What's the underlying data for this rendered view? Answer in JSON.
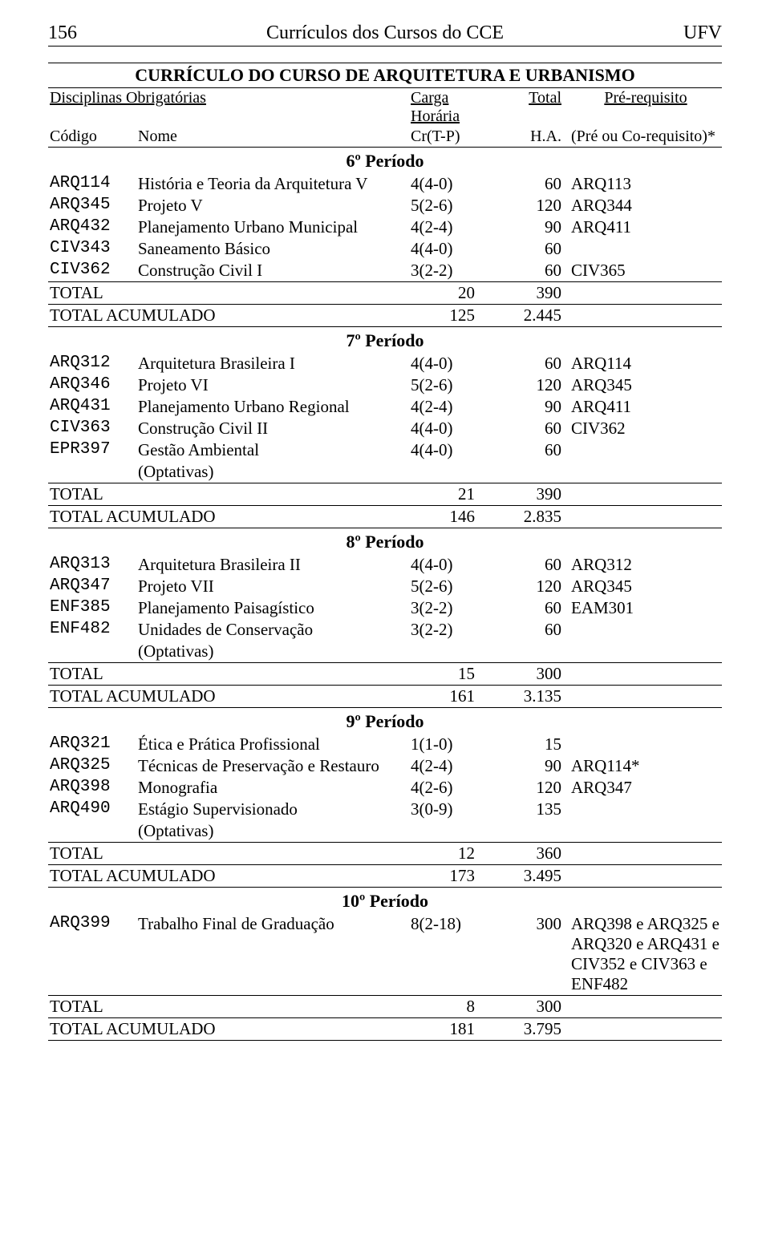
{
  "header": {
    "page_number": "156",
    "center": "Currículos dos Cursos do CCE",
    "right": "UFV"
  },
  "title": "CURRÍCULO DO CURSO DE ARQUITETURA E URBANISMO",
  "col_headers": {
    "disc": "Disciplinas Obrigatórias",
    "carga": "Carga Horária",
    "total": "Total",
    "prereq": "Pré-requisito",
    "codigo": "Código",
    "nome": "Nome",
    "crtp": "Cr(T-P)",
    "ha": "H.A.",
    "pre_co": "(Pré ou Co-requisito)*"
  },
  "periods": [
    {
      "label": "6º Período",
      "rows": [
        {
          "code": "ARQ114",
          "name": "História e Teoria da Arquitetura V",
          "cr": "4(4-0)",
          "h": "60",
          "pre": "ARQ113"
        },
        {
          "code": "ARQ345",
          "name": "Projeto V",
          "cr": "5(2-6)",
          "h": "120",
          "pre": "ARQ344"
        },
        {
          "code": "ARQ432",
          "name": "Planejamento Urbano Municipal",
          "cr": "4(2-4)",
          "h": "90",
          "pre": "ARQ411"
        },
        {
          "code": "CIV343",
          "name": "Saneamento Básico",
          "cr": "4(4-0)",
          "h": "60",
          "pre": ""
        },
        {
          "code": "CIV362",
          "name": "Construção Civil I",
          "cr": "3(2-2)",
          "h": "60",
          "pre": "CIV365"
        }
      ],
      "total_cr": "20",
      "total_h": "390",
      "acc_cr": "125",
      "acc_h": "2.445"
    },
    {
      "label": "7º Período",
      "rows": [
        {
          "code": "ARQ312",
          "name": "Arquitetura Brasileira I",
          "cr": "4(4-0)",
          "h": "60",
          "pre": "ARQ114"
        },
        {
          "code": "ARQ346",
          "name": "Projeto VI",
          "cr": "5(2-6)",
          "h": "120",
          "pre": "ARQ345"
        },
        {
          "code": "ARQ431",
          "name": "Planejamento Urbano Regional",
          "cr": "4(2-4)",
          "h": "90",
          "pre": "ARQ411"
        },
        {
          "code": "CIV363",
          "name": "Construção Civil II",
          "cr": "4(4-0)",
          "h": "60",
          "pre": "CIV362"
        },
        {
          "code": "EPR397",
          "name": "Gestão Ambiental",
          "cr": "4(4-0)",
          "h": "60",
          "pre": ""
        },
        {
          "code": "",
          "name": "(Optativas)",
          "cr": "",
          "h": "",
          "pre": ""
        }
      ],
      "total_cr": "21",
      "total_h": "390",
      "acc_cr": "146",
      "acc_h": "2.835"
    },
    {
      "label": "8º Período",
      "rows": [
        {
          "code": "ARQ313",
          "name": "Arquitetura Brasileira II",
          "cr": "4(4-0)",
          "h": "60",
          "pre": "ARQ312"
        },
        {
          "code": "ARQ347",
          "name": "Projeto VII",
          "cr": "5(2-6)",
          "h": "120",
          "pre": "ARQ345"
        },
        {
          "code": "ENF385",
          "name": "Planejamento Paisagístico",
          "cr": "3(2-2)",
          "h": "60",
          "pre": "EAM301"
        },
        {
          "code": "ENF482",
          "name": "Unidades de Conservação",
          "cr": "3(2-2)",
          "h": "60",
          "pre": ""
        },
        {
          "code": "",
          "name": "(Optativas)",
          "cr": "",
          "h": "",
          "pre": ""
        }
      ],
      "total_cr": "15",
      "total_h": "300",
      "acc_cr": "161",
      "acc_h": "3.135"
    },
    {
      "label": "9º Período",
      "rows": [
        {
          "code": "ARQ321",
          "name": "Ética e Prática Profissional",
          "cr": "1(1-0)",
          "h": "15",
          "pre": ""
        },
        {
          "code": "ARQ325",
          "name": "Técnicas de Preservação e Restauro",
          "cr": "4(2-4)",
          "h": "90",
          "pre": "ARQ114*"
        },
        {
          "code": "ARQ398",
          "name": "Monografia",
          "cr": "4(2-6)",
          "h": "120",
          "pre": "ARQ347"
        },
        {
          "code": "ARQ490",
          "name": "Estágio Supervisionado",
          "cr": "3(0-9)",
          "h": "135",
          "pre": ""
        },
        {
          "code": "",
          "name": "(Optativas)",
          "cr": "",
          "h": "",
          "pre": ""
        }
      ],
      "total_cr": "12",
      "total_h": "360",
      "acc_cr": "173",
      "acc_h": "3.495"
    },
    {
      "label": "10º Período",
      "rows": [
        {
          "code": "ARQ399",
          "name": "Trabalho Final de Graduação",
          "cr": "8(2-18)",
          "h": "300",
          "pre": "ARQ398 e ARQ325 e ARQ320 e ARQ431 e CIV352 e CIV363 e ENF482"
        }
      ],
      "total_cr": "8",
      "total_h": "300",
      "acc_cr": "181",
      "acc_h": "3.795"
    }
  ],
  "labels": {
    "total": "TOTAL",
    "total_acc": "TOTAL ACUMULADO"
  }
}
